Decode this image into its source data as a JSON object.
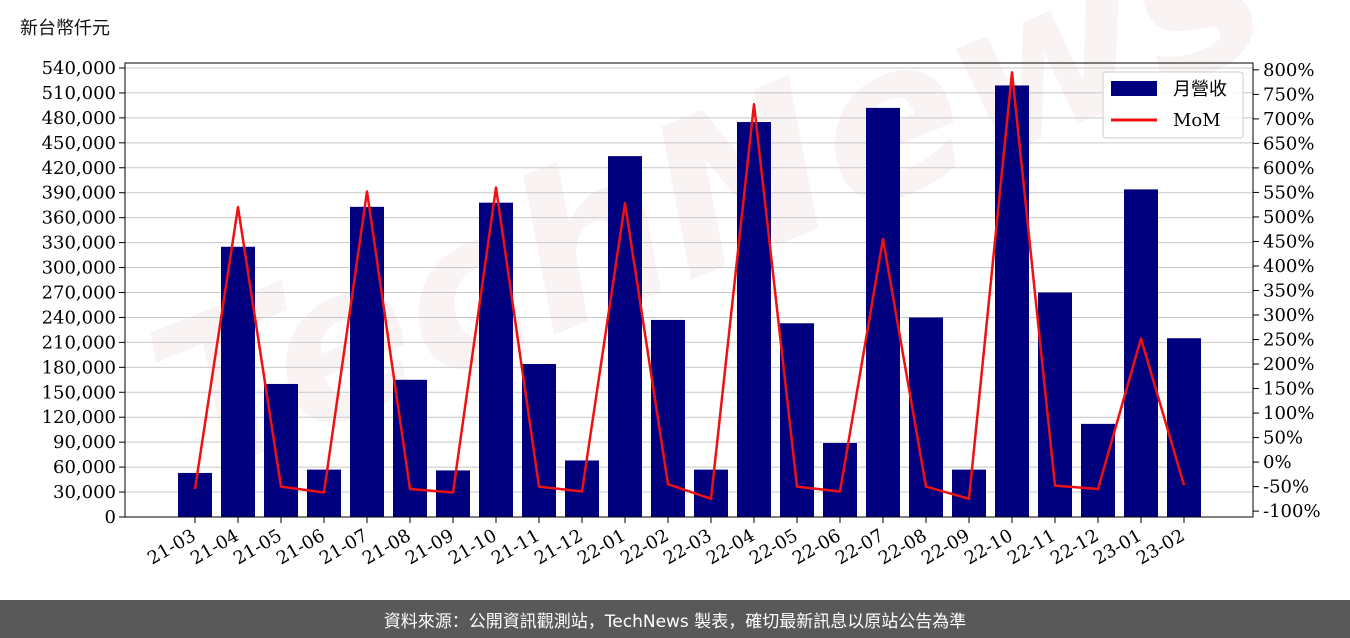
{
  "unit_label": "新台幣仟元",
  "footer_text": "資料來源：公開資訊觀測站，TechNews 製表，確切最新訊息以原站公告為準",
  "watermark_text": "TechNews",
  "colors": {
    "bar": "#00007f",
    "line": "#ee1111",
    "grid": "#c8c8c8",
    "footer_bg": "#595959"
  },
  "chart_data": {
    "type": "bar",
    "categories": [
      "21-03",
      "21-04",
      "21-05",
      "21-06",
      "21-07",
      "21-08",
      "21-09",
      "21-10",
      "21-11",
      "21-12",
      "22-01",
      "22-02",
      "22-03",
      "22-04",
      "22-05",
      "22-06",
      "22-07",
      "22-08",
      "22-09",
      "22-10",
      "22-11",
      "22-12",
      "23-01",
      "23-02"
    ],
    "series": [
      {
        "name": "月營收",
        "kind": "bar",
        "axis": "left",
        "values": [
          53000,
          325000,
          160000,
          57000,
          373000,
          165000,
          56000,
          378000,
          184000,
          68000,
          434000,
          237000,
          57000,
          475000,
          233000,
          89000,
          492000,
          240000,
          57000,
          519000,
          270000,
          112000,
          394000,
          215000
        ]
      },
      {
        "name": "MoM",
        "kind": "line",
        "axis": "right",
        "values": [
          -55,
          520,
          -50,
          -62,
          552,
          -55,
          -62,
          560,
          -50,
          -60,
          528,
          -45,
          -75,
          730,
          -50,
          -60,
          455,
          -50,
          -75,
          795,
          -48,
          -55,
          252,
          -47
        ]
      }
    ],
    "y_left": {
      "min": 0,
      "max": 546000,
      "ticks": [
        0,
        30000,
        60000,
        90000,
        120000,
        150000,
        180000,
        210000,
        240000,
        270000,
        300000,
        330000,
        360000,
        390000,
        420000,
        450000,
        480000,
        510000,
        540000
      ],
      "tick_labels": [
        "0",
        "30,000",
        "60,000",
        "90,000",
        "120,000",
        "150,000",
        "180,000",
        "210,000",
        "240,000",
        "270,000",
        "300,000",
        "330,000",
        "360,000",
        "390,000",
        "420,000",
        "450,000",
        "480,000",
        "510,000",
        "540,000"
      ]
    },
    "y_right": {
      "min": -112,
      "max": 814,
      "ticks": [
        -100,
        -50,
        0,
        50,
        100,
        150,
        200,
        250,
        300,
        350,
        400,
        450,
        500,
        550,
        600,
        650,
        700,
        750,
        800
      ],
      "tick_labels": [
        "-100%",
        "-50%",
        "0%",
        "50%",
        "100%",
        "150%",
        "200%",
        "250%",
        "300%",
        "350%",
        "400%",
        "450%",
        "500%",
        "550%",
        "600%",
        "650%",
        "700%",
        "750%",
        "800%"
      ]
    },
    "grid": "horizontal",
    "legend": {
      "position": "top-right"
    }
  }
}
